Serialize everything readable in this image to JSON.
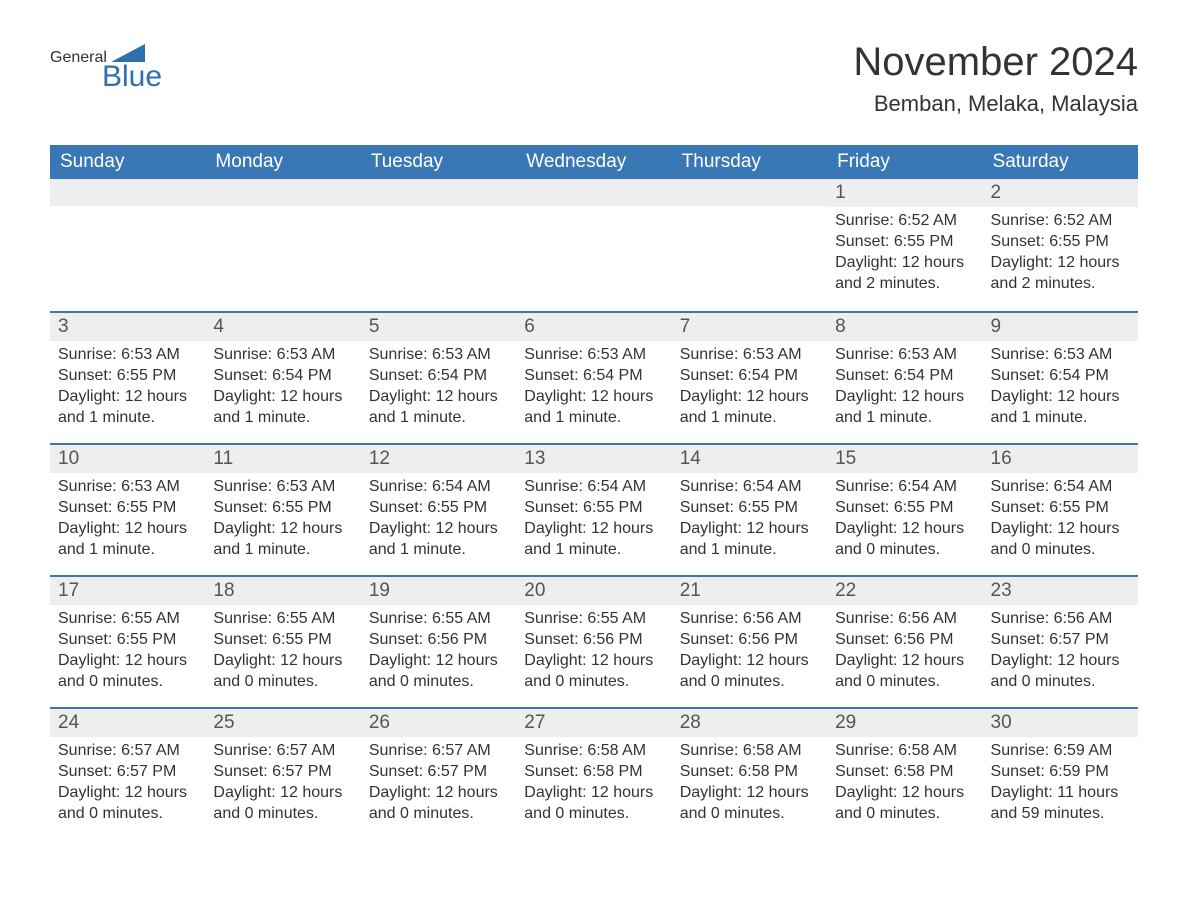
{
  "logo": {
    "general": "General",
    "blue": "Blue",
    "triangle_color": "#2f6fb0"
  },
  "header": {
    "month_title": "November 2024",
    "location": "Bemban, Melaka, Malaysia"
  },
  "calendar": {
    "day_headers": [
      "Sunday",
      "Monday",
      "Tuesday",
      "Wednesday",
      "Thursday",
      "Friday",
      "Saturday"
    ],
    "header_bg": "#3a78b5",
    "header_fg": "#ffffff",
    "week_separator_color": "#3a78b5",
    "daynum_bg": "#eeeeee",
    "body_fontsize": 16,
    "weeks": [
      [
        null,
        null,
        null,
        null,
        null,
        {
          "n": "1",
          "sunrise": "Sunrise: 6:52 AM",
          "sunset": "Sunset: 6:55 PM",
          "dl1": "Daylight: 12 hours",
          "dl2": "and 2 minutes."
        },
        {
          "n": "2",
          "sunrise": "Sunrise: 6:52 AM",
          "sunset": "Sunset: 6:55 PM",
          "dl1": "Daylight: 12 hours",
          "dl2": "and 2 minutes."
        }
      ],
      [
        {
          "n": "3",
          "sunrise": "Sunrise: 6:53 AM",
          "sunset": "Sunset: 6:55 PM",
          "dl1": "Daylight: 12 hours",
          "dl2": "and 1 minute."
        },
        {
          "n": "4",
          "sunrise": "Sunrise: 6:53 AM",
          "sunset": "Sunset: 6:54 PM",
          "dl1": "Daylight: 12 hours",
          "dl2": "and 1 minute."
        },
        {
          "n": "5",
          "sunrise": "Sunrise: 6:53 AM",
          "sunset": "Sunset: 6:54 PM",
          "dl1": "Daylight: 12 hours",
          "dl2": "and 1 minute."
        },
        {
          "n": "6",
          "sunrise": "Sunrise: 6:53 AM",
          "sunset": "Sunset: 6:54 PM",
          "dl1": "Daylight: 12 hours",
          "dl2": "and 1 minute."
        },
        {
          "n": "7",
          "sunrise": "Sunrise: 6:53 AM",
          "sunset": "Sunset: 6:54 PM",
          "dl1": "Daylight: 12 hours",
          "dl2": "and 1 minute."
        },
        {
          "n": "8",
          "sunrise": "Sunrise: 6:53 AM",
          "sunset": "Sunset: 6:54 PM",
          "dl1": "Daylight: 12 hours",
          "dl2": "and 1 minute."
        },
        {
          "n": "9",
          "sunrise": "Sunrise: 6:53 AM",
          "sunset": "Sunset: 6:54 PM",
          "dl1": "Daylight: 12 hours",
          "dl2": "and 1 minute."
        }
      ],
      [
        {
          "n": "10",
          "sunrise": "Sunrise: 6:53 AM",
          "sunset": "Sunset: 6:55 PM",
          "dl1": "Daylight: 12 hours",
          "dl2": "and 1 minute."
        },
        {
          "n": "11",
          "sunrise": "Sunrise: 6:53 AM",
          "sunset": "Sunset: 6:55 PM",
          "dl1": "Daylight: 12 hours",
          "dl2": "and 1 minute."
        },
        {
          "n": "12",
          "sunrise": "Sunrise: 6:54 AM",
          "sunset": "Sunset: 6:55 PM",
          "dl1": "Daylight: 12 hours",
          "dl2": "and 1 minute."
        },
        {
          "n": "13",
          "sunrise": "Sunrise: 6:54 AM",
          "sunset": "Sunset: 6:55 PM",
          "dl1": "Daylight: 12 hours",
          "dl2": "and 1 minute."
        },
        {
          "n": "14",
          "sunrise": "Sunrise: 6:54 AM",
          "sunset": "Sunset: 6:55 PM",
          "dl1": "Daylight: 12 hours",
          "dl2": "and 1 minute."
        },
        {
          "n": "15",
          "sunrise": "Sunrise: 6:54 AM",
          "sunset": "Sunset: 6:55 PM",
          "dl1": "Daylight: 12 hours",
          "dl2": "and 0 minutes."
        },
        {
          "n": "16",
          "sunrise": "Sunrise: 6:54 AM",
          "sunset": "Sunset: 6:55 PM",
          "dl1": "Daylight: 12 hours",
          "dl2": "and 0 minutes."
        }
      ],
      [
        {
          "n": "17",
          "sunrise": "Sunrise: 6:55 AM",
          "sunset": "Sunset: 6:55 PM",
          "dl1": "Daylight: 12 hours",
          "dl2": "and 0 minutes."
        },
        {
          "n": "18",
          "sunrise": "Sunrise: 6:55 AM",
          "sunset": "Sunset: 6:55 PM",
          "dl1": "Daylight: 12 hours",
          "dl2": "and 0 minutes."
        },
        {
          "n": "19",
          "sunrise": "Sunrise: 6:55 AM",
          "sunset": "Sunset: 6:56 PM",
          "dl1": "Daylight: 12 hours",
          "dl2": "and 0 minutes."
        },
        {
          "n": "20",
          "sunrise": "Sunrise: 6:55 AM",
          "sunset": "Sunset: 6:56 PM",
          "dl1": "Daylight: 12 hours",
          "dl2": "and 0 minutes."
        },
        {
          "n": "21",
          "sunrise": "Sunrise: 6:56 AM",
          "sunset": "Sunset: 6:56 PM",
          "dl1": "Daylight: 12 hours",
          "dl2": "and 0 minutes."
        },
        {
          "n": "22",
          "sunrise": "Sunrise: 6:56 AM",
          "sunset": "Sunset: 6:56 PM",
          "dl1": "Daylight: 12 hours",
          "dl2": "and 0 minutes."
        },
        {
          "n": "23",
          "sunrise": "Sunrise: 6:56 AM",
          "sunset": "Sunset: 6:57 PM",
          "dl1": "Daylight: 12 hours",
          "dl2": "and 0 minutes."
        }
      ],
      [
        {
          "n": "24",
          "sunrise": "Sunrise: 6:57 AM",
          "sunset": "Sunset: 6:57 PM",
          "dl1": "Daylight: 12 hours",
          "dl2": "and 0 minutes."
        },
        {
          "n": "25",
          "sunrise": "Sunrise: 6:57 AM",
          "sunset": "Sunset: 6:57 PM",
          "dl1": "Daylight: 12 hours",
          "dl2": "and 0 minutes."
        },
        {
          "n": "26",
          "sunrise": "Sunrise: 6:57 AM",
          "sunset": "Sunset: 6:57 PM",
          "dl1": "Daylight: 12 hours",
          "dl2": "and 0 minutes."
        },
        {
          "n": "27",
          "sunrise": "Sunrise: 6:58 AM",
          "sunset": "Sunset: 6:58 PM",
          "dl1": "Daylight: 12 hours",
          "dl2": "and 0 minutes."
        },
        {
          "n": "28",
          "sunrise": "Sunrise: 6:58 AM",
          "sunset": "Sunset: 6:58 PM",
          "dl1": "Daylight: 12 hours",
          "dl2": "and 0 minutes."
        },
        {
          "n": "29",
          "sunrise": "Sunrise: 6:58 AM",
          "sunset": "Sunset: 6:58 PM",
          "dl1": "Daylight: 12 hours",
          "dl2": "and 0 minutes."
        },
        {
          "n": "30",
          "sunrise": "Sunrise: 6:59 AM",
          "sunset": "Sunset: 6:59 PM",
          "dl1": "Daylight: 11 hours",
          "dl2": "and 59 minutes."
        }
      ]
    ]
  }
}
